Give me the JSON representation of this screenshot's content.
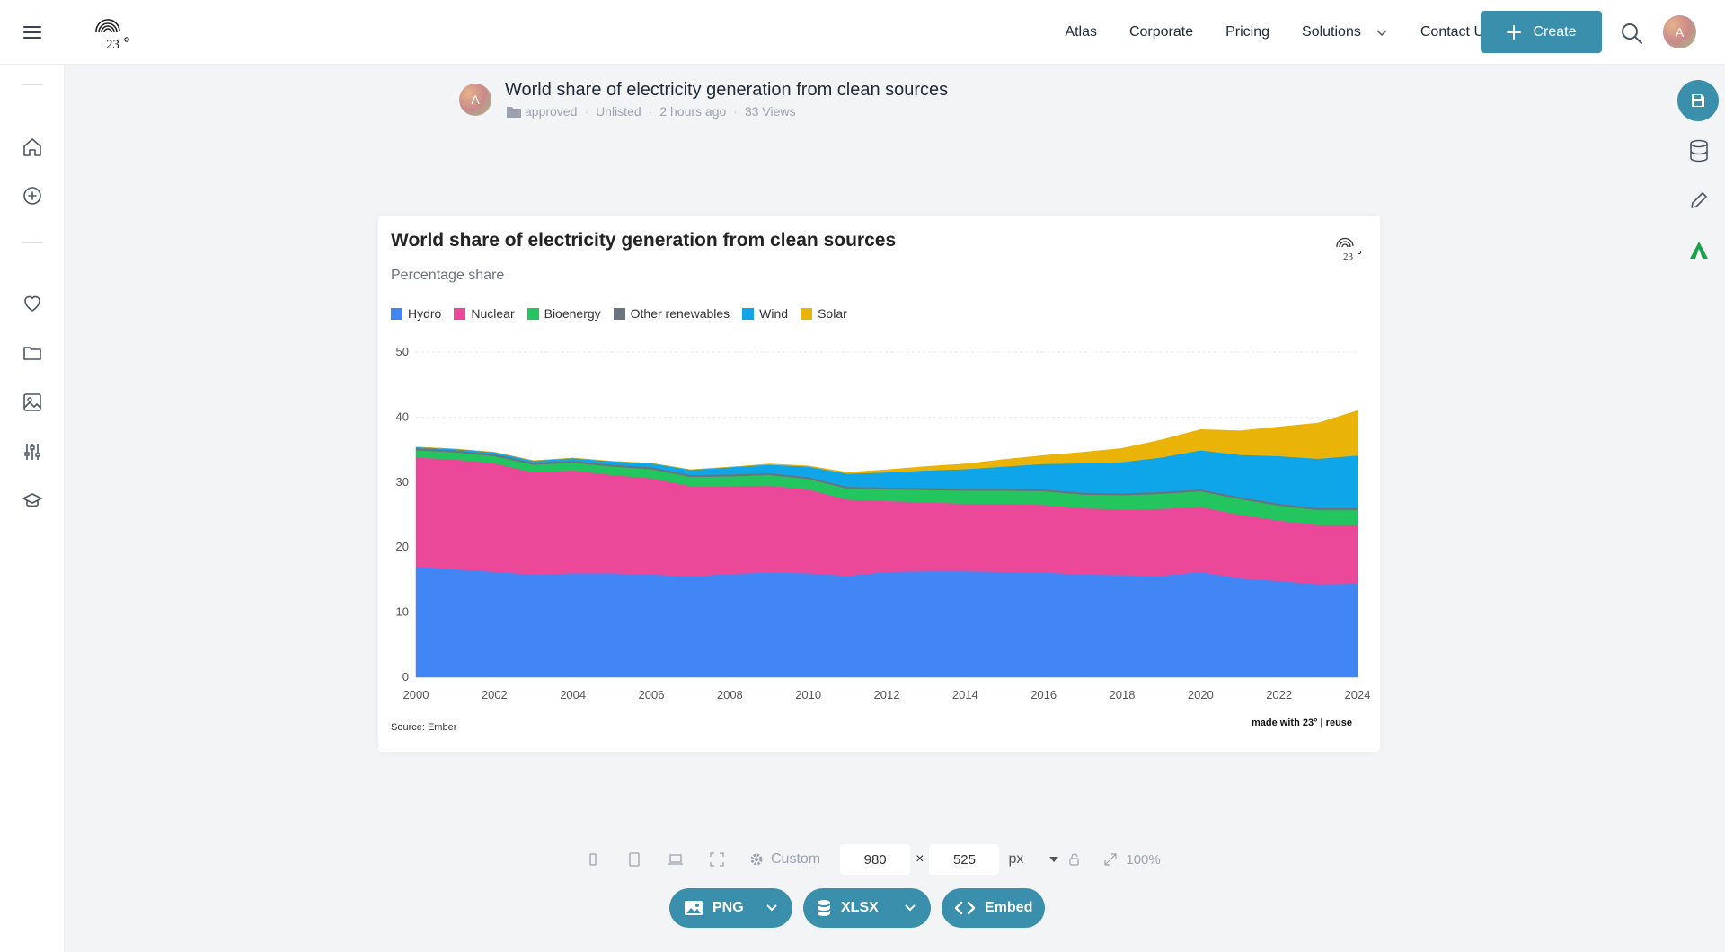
{
  "topbar": {
    "nav": [
      {
        "label": "Atlas"
      },
      {
        "label": "Corporate"
      },
      {
        "label": "Pricing"
      },
      {
        "label": "Solutions"
      },
      {
        "label": "Contact Us"
      }
    ],
    "create_label": "Create",
    "avatar_initial": "A"
  },
  "meta": {
    "avatar_initial": "A",
    "title": "World share of electricity generation from clean sources",
    "folder": "approved",
    "visibility": "Unlisted",
    "time": "2 hours ago",
    "views": "33 Views"
  },
  "chart_data": {
    "type": "area",
    "stacked": true,
    "title": "World share of electricity generation from clean sources",
    "subtitle": "Percentage share",
    "x": [
      2000,
      2001,
      2002,
      2003,
      2004,
      2005,
      2006,
      2007,
      2008,
      2009,
      2010,
      2011,
      2012,
      2013,
      2014,
      2015,
      2016,
      2017,
      2018,
      2019,
      2020,
      2021,
      2022,
      2023,
      2024
    ],
    "x_ticks": [
      "2000",
      "2002",
      "2004",
      "2006",
      "2008",
      "2010",
      "2012",
      "2014",
      "2016",
      "2018",
      "2020",
      "2022",
      "2024"
    ],
    "y_ticks": [
      "0",
      "10",
      "20",
      "30",
      "40",
      "50"
    ],
    "ylim": [
      0,
      50
    ],
    "grid": true,
    "legend": "top-left",
    "series": [
      {
        "name": "Hydro",
        "color": "#4285f4",
        "values": [
          17.0,
          16.6,
          16.2,
          15.8,
          16.0,
          16.0,
          15.8,
          15.5,
          15.9,
          16.1,
          16.0,
          15.6,
          16.2,
          16.3,
          16.3,
          16.2,
          16.1,
          15.8,
          15.7,
          15.6,
          16.2,
          15.2,
          14.8,
          14.3,
          14.4
        ]
      },
      {
        "name": "Nuclear",
        "color": "#ec4899",
        "values": [
          16.8,
          16.9,
          16.7,
          15.7,
          15.8,
          15.1,
          14.8,
          13.9,
          13.5,
          13.4,
          12.9,
          11.7,
          10.9,
          10.6,
          10.4,
          10.5,
          10.4,
          10.2,
          10.1,
          10.3,
          10.0,
          9.8,
          9.3,
          9.1,
          9.0
        ]
      },
      {
        "name": "Bioenergy",
        "color": "#22c55e",
        "values": [
          1.1,
          1.1,
          1.1,
          1.2,
          1.2,
          1.3,
          1.4,
          1.4,
          1.5,
          1.6,
          1.6,
          1.7,
          1.8,
          1.9,
          2.0,
          2.0,
          2.1,
          2.1,
          2.2,
          2.3,
          2.4,
          2.4,
          2.3,
          2.3,
          2.3
        ]
      },
      {
        "name": "Other renewables",
        "color": "#6b7280",
        "values": [
          0.3,
          0.3,
          0.3,
          0.3,
          0.3,
          0.3,
          0.3,
          0.3,
          0.3,
          0.3,
          0.3,
          0.3,
          0.3,
          0.3,
          0.3,
          0.3,
          0.3,
          0.3,
          0.3,
          0.3,
          0.3,
          0.3,
          0.3,
          0.3,
          0.3
        ]
      },
      {
        "name": "Wind",
        "color": "#0ea5e9",
        "values": [
          0.2,
          0.2,
          0.3,
          0.3,
          0.4,
          0.5,
          0.6,
          0.8,
          1.1,
          1.3,
          1.6,
          2.0,
          2.3,
          2.7,
          3.0,
          3.4,
          3.9,
          4.5,
          4.8,
          5.3,
          6.0,
          6.5,
          7.3,
          7.6,
          8.1
        ]
      },
      {
        "name": "Solar",
        "color": "#eab308",
        "values": [
          0.0,
          0.0,
          0.0,
          0.0,
          0.0,
          0.0,
          0.0,
          0.0,
          0.0,
          0.1,
          0.1,
          0.2,
          0.4,
          0.6,
          0.8,
          1.1,
          1.3,
          1.7,
          2.1,
          2.7,
          3.2,
          3.7,
          4.5,
          5.5,
          6.9
        ]
      }
    ],
    "source": "Source: Ember",
    "credit": "made with 23° | reuse"
  },
  "toolbar": {
    "preset_label": "Custom",
    "width": "980",
    "height": "525",
    "times": "×",
    "unit": "px",
    "zoom": "100%"
  },
  "export": {
    "png_label": "PNG",
    "xlsx_label": "XLSX",
    "embed_label": "Embed"
  },
  "colors": {
    "accent": "#3a8fad"
  }
}
